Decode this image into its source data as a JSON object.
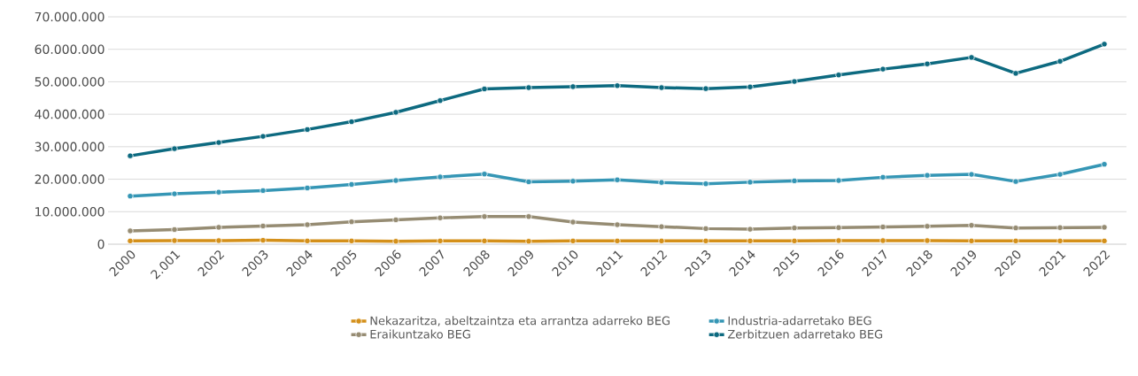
{
  "chart_data": {
    "type": "line",
    "categories": [
      "2000",
      "2.001",
      "2002",
      "2003",
      "2004",
      "2005",
      "2006",
      "2007",
      "2008",
      "2009",
      "2010",
      "2011",
      "2012",
      "2013",
      "2014",
      "2015",
      "2016",
      "2017",
      "2018",
      "2019",
      "2020",
      "2021",
      "2022"
    ],
    "series": [
      {
        "name": "Nekazaritza, abeltzaintza eta arrantza adarreko BEG",
        "color": "#d4901a",
        "values": [
          1000000,
          1100000,
          1100000,
          1200000,
          1000000,
          1000000,
          900000,
          1000000,
          1000000,
          900000,
          1000000,
          1000000,
          1000000,
          1000000,
          1000000,
          1000000,
          1100000,
          1100000,
          1100000,
          1000000,
          1000000,
          1000000,
          1000000
        ]
      },
      {
        "name": "Industria-adarretako BEG",
        "color": "#3596b5",
        "values": [
          14800000,
          15500000,
          16000000,
          16500000,
          17300000,
          18400000,
          19600000,
          20700000,
          21600000,
          19200000,
          19400000,
          19800000,
          19000000,
          18600000,
          19100000,
          19500000,
          19600000,
          20600000,
          21200000,
          21500000,
          19300000,
          21500000,
          24600000
        ]
      },
      {
        "name": "Eraikuntzako BEG",
        "color": "#968c73",
        "values": [
          4100000,
          4500000,
          5200000,
          5600000,
          6000000,
          6900000,
          7500000,
          8100000,
          8500000,
          8500000,
          6800000,
          6000000,
          5400000,
          4800000,
          4600000,
          5000000,
          5100000,
          5300000,
          5500000,
          5800000,
          5000000,
          5100000,
          5200000
        ]
      },
      {
        "name": "Zerbitzuen adarretako BEG",
        "color": "#0d6a80",
        "values": [
          27200000,
          29400000,
          31300000,
          33200000,
          35300000,
          37700000,
          40600000,
          44200000,
          47800000,
          48200000,
          48500000,
          48800000,
          48200000,
          47900000,
          48400000,
          50100000,
          52100000,
          53900000,
          55500000,
          57500000,
          52600000,
          56300000,
          61600000
        ]
      }
    ],
    "ylim": [
      0,
      70000000
    ],
    "yticks": [
      {
        "value": 0,
        "label": "0"
      },
      {
        "value": 10000000,
        "label": "10.000.000"
      },
      {
        "value": 20000000,
        "label": "20.000.000"
      },
      {
        "value": 30000000,
        "label": "30.000.000"
      },
      {
        "value": 40000000,
        "label": "40.000.000"
      },
      {
        "value": 50000000,
        "label": "50.000.000"
      },
      {
        "value": 60000000,
        "label": "60.000.000"
      },
      {
        "value": 70000000,
        "label": "70.000.000"
      }
    ],
    "grid": "y",
    "legend": "bottom",
    "marker": "circle",
    "line_style": "solid"
  }
}
